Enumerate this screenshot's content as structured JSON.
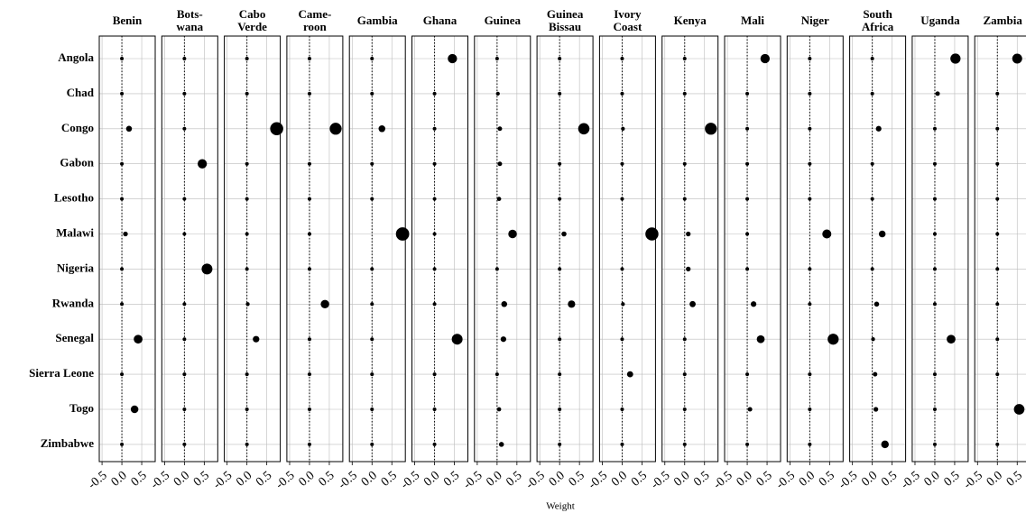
{
  "chart_data": {
    "type": "dot",
    "xlabel": "Weight",
    "categories": [
      "Angola",
      "Chad",
      "Congo",
      "Gabon",
      "Lesotho",
      "Malawi",
      "Nigeria",
      "Rwanda",
      "Senegal",
      "Sierra Leone",
      "Togo",
      "Zimbabwe"
    ],
    "xlim": [
      -0.57,
      0.84
    ],
    "xticks": [
      -0.5,
      {
        "value": 0,
        "label": "0.0"
      },
      0.5
    ],
    "color": "#000000",
    "grid": true,
    "panels": [
      {
        "title": [
          "Benin"
        ],
        "values": [
          0,
          0,
          0.18,
          0,
          0,
          0.09,
          0,
          0,
          0.41,
          0,
          0.32,
          0
        ]
      },
      {
        "title": [
          "Bots-",
          "wana"
        ],
        "values": [
          0,
          0,
          0,
          0.45,
          0,
          0,
          0.57,
          0,
          0,
          0,
          0,
          0
        ]
      },
      {
        "title": [
          "Cabo",
          "Verde"
        ],
        "values": [
          0,
          0,
          0.75,
          0,
          0,
          0,
          0,
          0.02,
          0.23,
          0,
          0,
          0
        ]
      },
      {
        "title": [
          "Came-",
          "roon"
        ],
        "values": [
          0,
          0,
          0.66,
          0,
          0,
          0,
          0,
          0.39,
          0,
          0,
          0,
          0
        ]
      },
      {
        "title": [
          "Gambia"
        ],
        "values": [
          0,
          0,
          0.25,
          0,
          0,
          0.77,
          0,
          0,
          0,
          0,
          0,
          0
        ]
      },
      {
        "title": [
          "Ghana"
        ],
        "values": [
          0.45,
          0,
          0,
          0,
          0,
          0,
          0,
          0,
          0.57,
          0,
          0,
          0
        ]
      },
      {
        "title": [
          "Guinea"
        ],
        "values": [
          0,
          0.02,
          0.07,
          0.07,
          0.05,
          0.39,
          0,
          0.18,
          0.16,
          0,
          0.05,
          0.11
        ]
      },
      {
        "title": [
          "Guinea",
          "Bissau"
        ],
        "values": [
          0,
          0,
          0.61,
          0,
          0,
          0.11,
          0,
          0.3,
          0,
          0,
          0,
          0
        ]
      },
      {
        "title": [
          "Ivory",
          "Coast"
        ],
        "values": [
          0,
          0,
          0.02,
          0,
          0,
          0.75,
          0,
          0.02,
          0,
          0.2,
          0,
          0
        ]
      },
      {
        "title": [
          "Kenya"
        ],
        "values": [
          0,
          0,
          0.66,
          0,
          0,
          0.09,
          0.09,
          0.2,
          0,
          0,
          0,
          0
        ]
      },
      {
        "title": [
          "Mali"
        ],
        "values": [
          0.45,
          0,
          0,
          0,
          0,
          0,
          0,
          0.16,
          0.34,
          0,
          0.07,
          0
        ]
      },
      {
        "title": [
          "Niger"
        ],
        "values": [
          0,
          0,
          0,
          0,
          0,
          0.43,
          0,
          0,
          0.59,
          0,
          0,
          0
        ]
      },
      {
        "title": [
          "South",
          "Africa"
        ],
        "values": [
          0,
          0,
          0.16,
          0,
          0,
          0.25,
          0,
          0.11,
          0.02,
          0.07,
          0.09,
          0.32
        ]
      },
      {
        "title": [
          "Uganda"
        ],
        "values": [
          0.52,
          0.07,
          0,
          0,
          0,
          0,
          0,
          0,
          0.41,
          0,
          0,
          0
        ]
      },
      {
        "title": [
          "Zambia"
        ],
        "values": [
          0.5,
          0,
          0,
          0,
          0,
          0,
          0,
          0,
          0,
          0,
          0.55,
          0
        ]
      }
    ]
  }
}
